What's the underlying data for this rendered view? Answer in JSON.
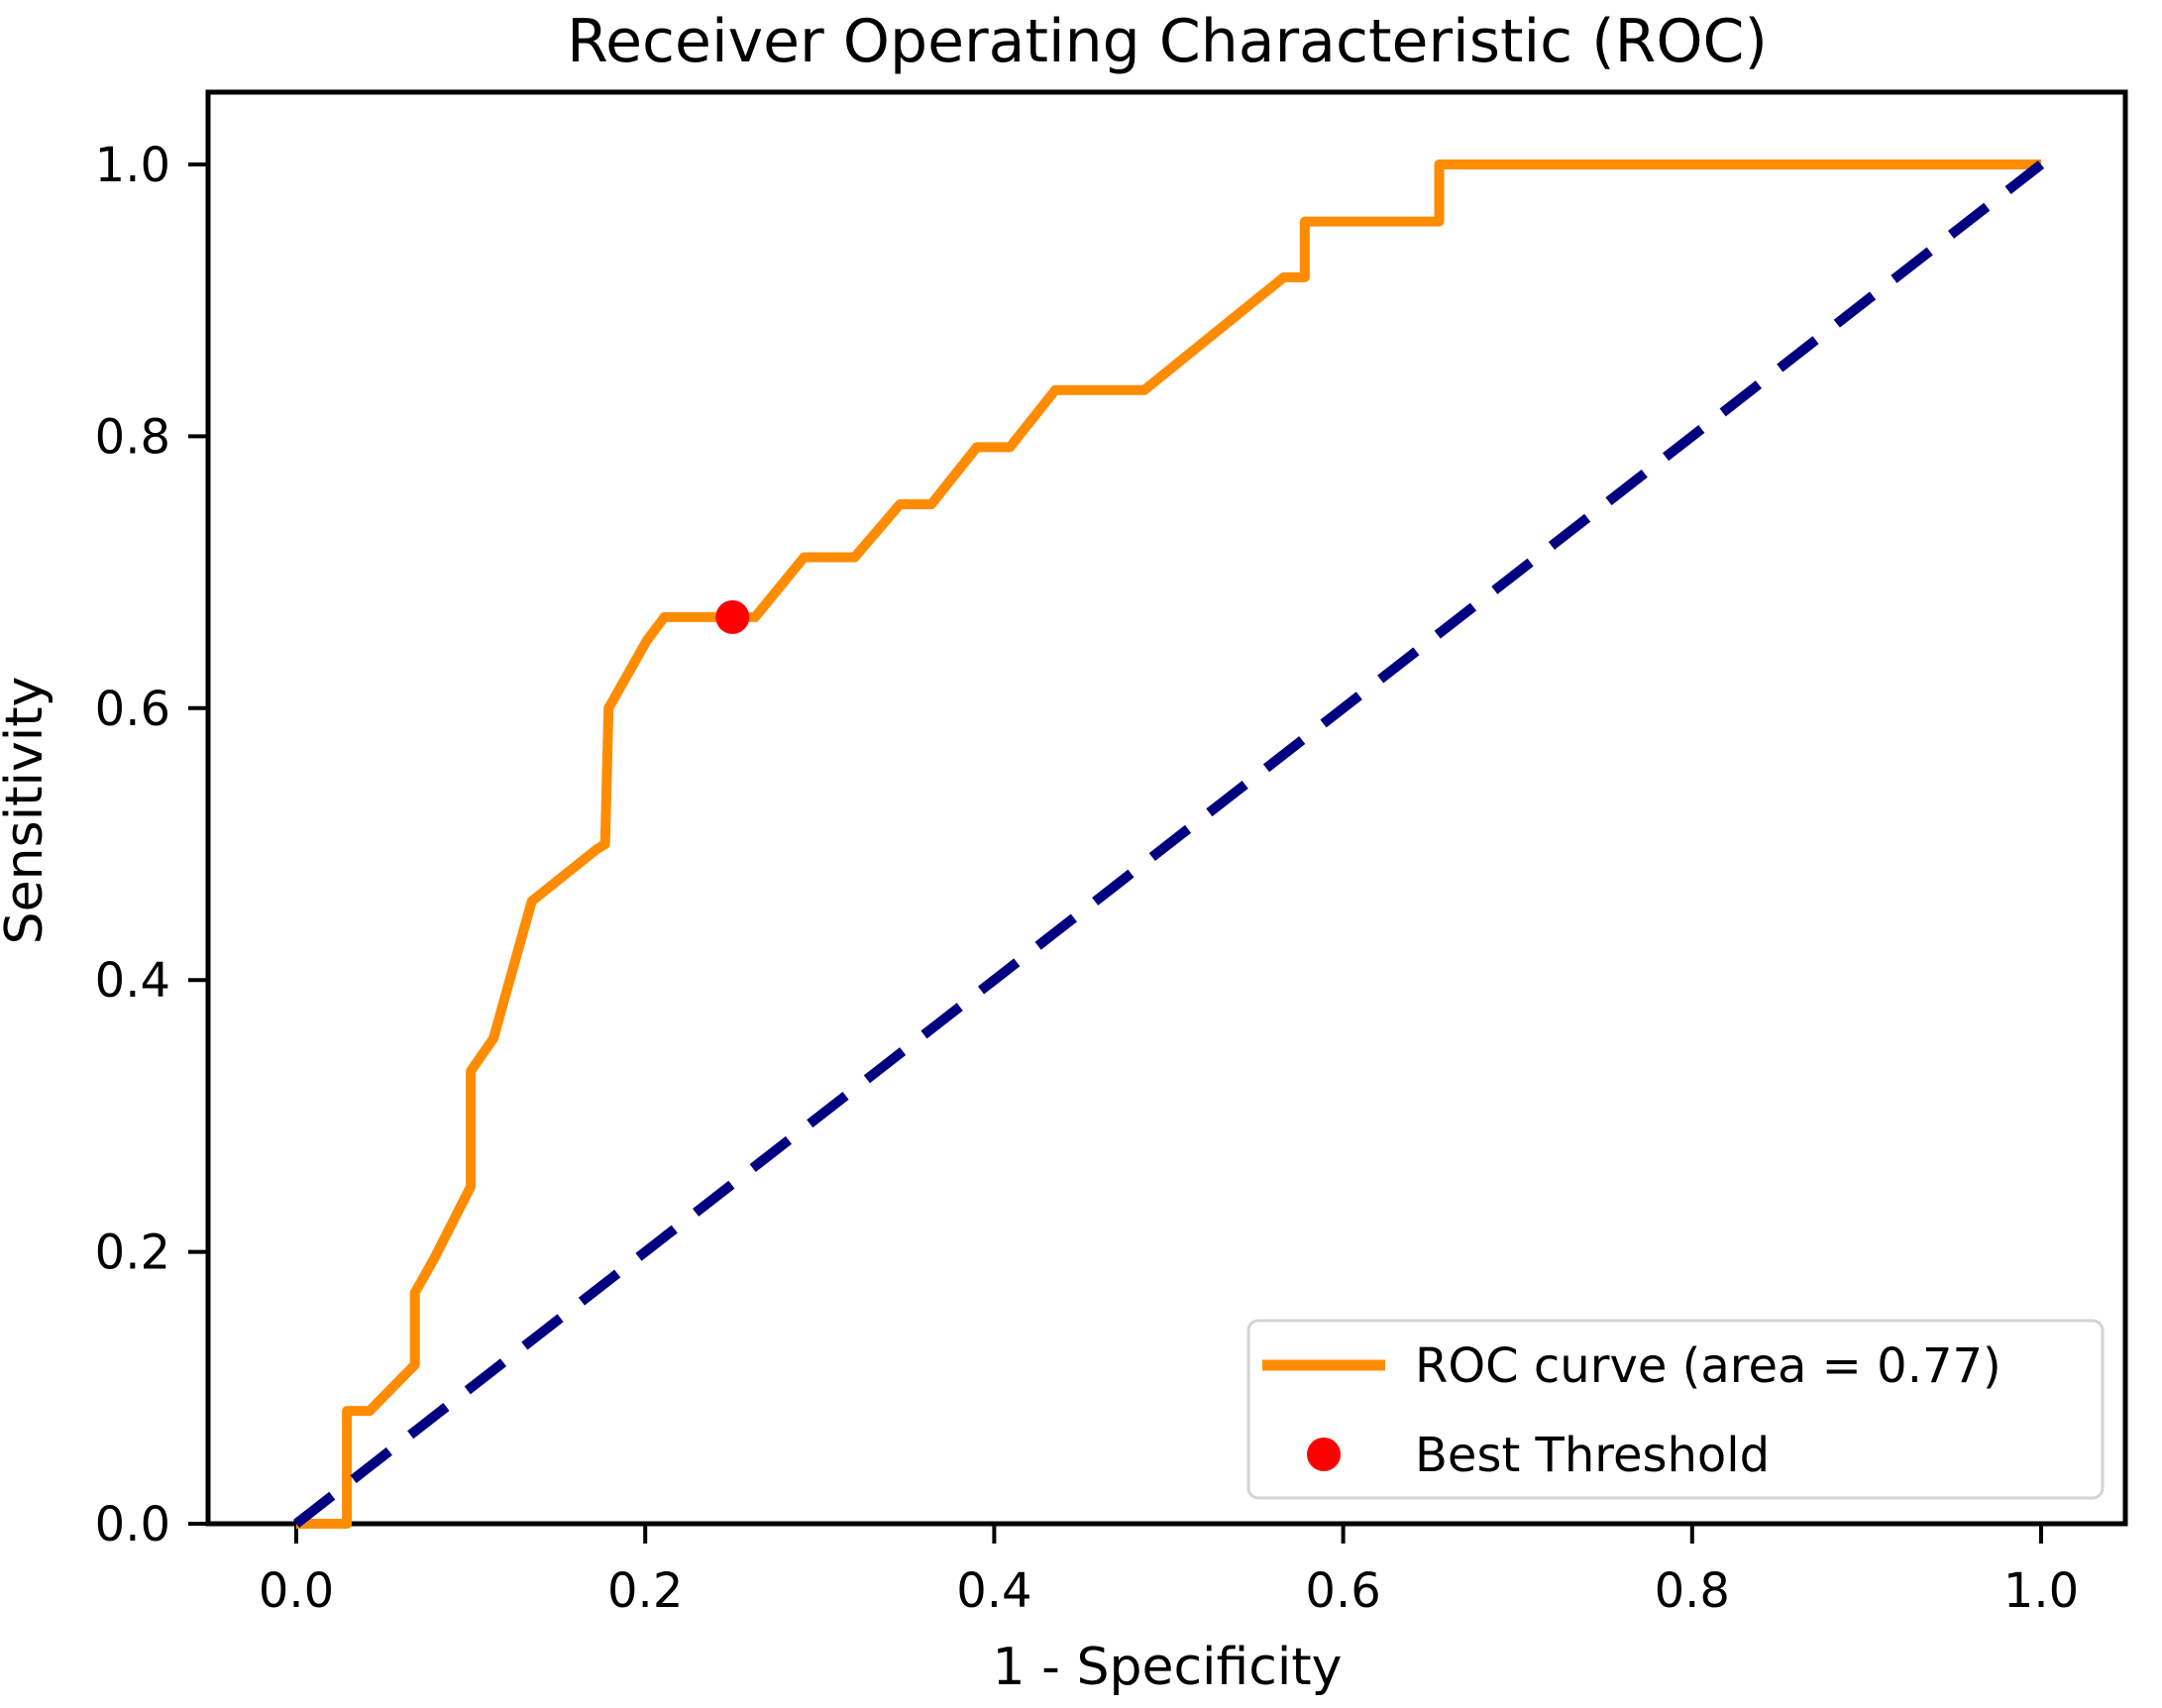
{
  "title": "Receiver Operating Characteristic (ROC)",
  "axes": {
    "xlabel": "1 - Specificity",
    "ylabel": "Sensitivity",
    "x_tick_labels": [
      "0.0",
      "0.2",
      "0.4",
      "0.6",
      "0.8",
      "1.0"
    ],
    "x_tick_values": [
      0.0,
      0.2,
      0.4,
      0.6,
      0.8,
      1.0
    ],
    "y_tick_labels": [
      "0.0",
      "0.2",
      "0.4",
      "0.6",
      "0.8",
      "1.0"
    ],
    "y_tick_values": [
      0.0,
      0.2,
      0.4,
      0.6,
      0.8,
      1.0
    ]
  },
  "legend": {
    "items": [
      {
        "label": "ROC curve (area = 0.77)",
        "marker": "line",
        "color": "#ff8c00"
      },
      {
        "label": "Best Threshold",
        "marker": "dot",
        "color": "#ff0000"
      }
    ]
  },
  "colors": {
    "roc_curve": "#ff8c00",
    "chance_line": "#000080",
    "best_threshold": "#ff0000",
    "axis": "#000000",
    "legend_border": "#d3d3d3",
    "background": "#ffffff"
  },
  "chart_data": {
    "type": "line",
    "title": "Receiver Operating Characteristic (ROC)",
    "xlabel": "1 - Specificity",
    "ylabel": "Sensitivity",
    "xlim": [
      -0.05,
      1.05
    ],
    "ylim": [
      0.0,
      1.05
    ],
    "grid": false,
    "legend_position": "lower right",
    "auc": 0.77,
    "best_threshold_point": [
      0.25,
      0.667
    ],
    "series": [
      {
        "name": "ROC curve (area = 0.77)",
        "kind": "line",
        "style": "solid",
        "color": "#ff8c00",
        "points": [
          [
            0.0,
            0.0
          ],
          [
            0.029,
            0.0
          ],
          [
            0.029,
            0.083
          ],
          [
            0.042,
            0.083
          ],
          [
            0.068,
            0.117
          ],
          [
            0.068,
            0.17
          ],
          [
            0.079,
            0.195
          ],
          [
            0.1,
            0.248
          ],
          [
            0.1,
            0.333
          ],
          [
            0.113,
            0.357
          ],
          [
            0.135,
            0.458
          ],
          [
            0.172,
            0.496
          ],
          [
            0.177,
            0.5
          ],
          [
            0.179,
            0.6
          ],
          [
            0.201,
            0.65
          ],
          [
            0.211,
            0.667
          ],
          [
            0.263,
            0.667
          ],
          [
            0.291,
            0.711
          ],
          [
            0.32,
            0.711
          ],
          [
            0.346,
            0.75
          ],
          [
            0.364,
            0.75
          ],
          [
            0.39,
            0.792
          ],
          [
            0.409,
            0.792
          ],
          [
            0.435,
            0.834
          ],
          [
            0.486,
            0.834
          ],
          [
            0.566,
            0.917
          ],
          [
            0.578,
            0.917
          ],
          [
            0.578,
            0.958
          ],
          [
            0.655,
            0.958
          ],
          [
            0.655,
            1.0
          ],
          [
            1.0,
            1.0
          ]
        ]
      },
      {
        "name": "Chance diagonal",
        "kind": "line",
        "style": "dashed",
        "color": "#000080",
        "points": [
          [
            0.0,
            0.0
          ],
          [
            1.0,
            1.0
          ]
        ]
      },
      {
        "name": "Best Threshold",
        "kind": "scatter",
        "color": "#ff0000",
        "points": [
          [
            0.25,
            0.667
          ]
        ]
      }
    ]
  }
}
